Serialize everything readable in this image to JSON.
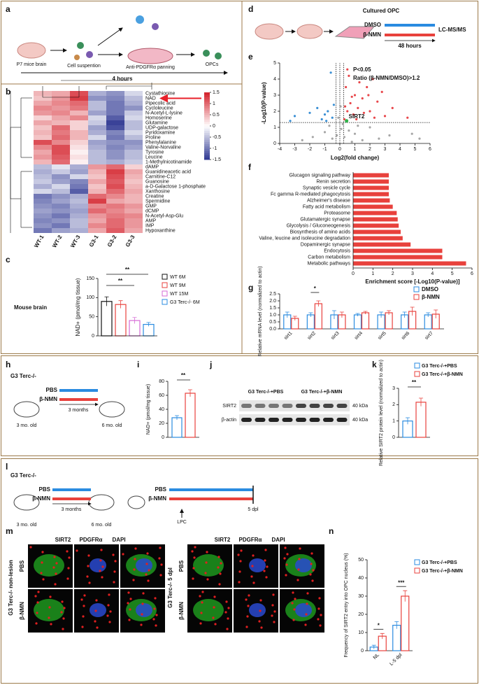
{
  "panel_labels": [
    "a",
    "b",
    "c",
    "d",
    "e",
    "f",
    "g",
    "h",
    "i",
    "j",
    "k",
    "l",
    "m",
    "n"
  ],
  "a": {
    "steps": [
      "P7 mice brain",
      "Cell suspention",
      "Anti-PDGFRα panning",
      "OPCs"
    ],
    "duration": "4 hours"
  },
  "b": {
    "type": "heatmap",
    "columns": [
      "WT-1",
      "WT-2",
      "WT-3",
      "G3-1",
      "G3-2",
      "G3-3"
    ],
    "rows": [
      "Cystathionine",
      "NAD",
      "Pipecolic acid",
      "Cycloleucine",
      "N-Acetyl-L-lysine",
      "Homoserine",
      "Glutamine",
      "UDP-galactose",
      "Pyridoxamine",
      "Proline",
      "Phenylalanine",
      "Valine-Norvaline",
      "Tyrosine",
      "Leucine",
      "1-Methylnicotinamide",
      "dAMP",
      "Guanidineacetic acid",
      "Carnitine-C12",
      "Guanosine",
      "a-D-Galactose 1-phosphate",
      "Xanthosine",
      "Creatine",
      "Spermidine",
      "GMP",
      "dCMP",
      "N-Acetyl-Asp-Glu",
      "AMP",
      "IMP",
      "Hypoxanthine"
    ],
    "values": [
      [
        0.5,
        0.6,
        1.2,
        -0.6,
        -0.8,
        -0.3
      ],
      [
        0.4,
        0.7,
        1.3,
        -0.8,
        -0.9,
        -0.5
      ],
      [
        0.6,
        0.8,
        1.0,
        -0.5,
        -1.0,
        -0.6
      ],
      [
        0.8,
        0.7,
        0.9,
        -0.5,
        -1.0,
        -0.8
      ],
      [
        0.7,
        0.8,
        0.5,
        -0.7,
        -1.0,
        -0.4
      ],
      [
        0.3,
        0.6,
        0.8,
        -0.3,
        -1.2,
        -0.3
      ],
      [
        0.6,
        0.5,
        0.3,
        -0.4,
        -1.4,
        -0.5
      ],
      [
        0.4,
        1.0,
        0.3,
        -0.7,
        -1.3,
        -0.5
      ],
      [
        0.5,
        0.9,
        0.5,
        -0.6,
        -0.9,
        -0.3
      ],
      [
        0.4,
        1.0,
        0.5,
        -0.3,
        -1.0,
        -0.5
      ],
      [
        1.2,
        0.8,
        0.3,
        -0.7,
        -0.8,
        -0.8
      ],
      [
        0.8,
        1.2,
        0.2,
        -0.6,
        -0.9,
        -0.7
      ],
      [
        0.6,
        1.2,
        0.1,
        -0.5,
        -0.8,
        -0.5
      ],
      [
        0.7,
        1.1,
        0.2,
        -0.5,
        -0.8,
        -0.5
      ],
      [
        0.5,
        1.0,
        0.1,
        -0.5,
        -0.6,
        -0.4
      ],
      [
        -0.5,
        -0.2,
        -0.6,
        0.7,
        1.0,
        0.3
      ],
      [
        -0.6,
        -0.4,
        -0.7,
        0.5,
        1.3,
        0.6
      ],
      [
        -0.5,
        -0.8,
        -0.3,
        0.4,
        1.2,
        0.5
      ],
      [
        -0.4,
        -0.7,
        -0.9,
        0.6,
        1.1,
        0.4
      ],
      [
        -0.6,
        -0.3,
        -1.0,
        0.4,
        1.2,
        0.5
      ],
      [
        -0.3,
        -0.5,
        -1.2,
        0.5,
        1.0,
        0.6
      ],
      [
        -1.0,
        -0.8,
        -0.6,
        1.0,
        0.8,
        0.5
      ],
      [
        -0.9,
        -0.7,
        -0.5,
        1.3,
        0.6,
        0.5
      ],
      [
        -0.8,
        -0.9,
        -0.6,
        0.8,
        0.9,
        0.7
      ],
      [
        -0.7,
        -0.8,
        -0.7,
        1.0,
        0.8,
        0.6
      ],
      [
        -0.8,
        -1.0,
        -0.6,
        0.7,
        0.9,
        0.8
      ],
      [
        -0.9,
        -0.8,
        -0.5,
        0.6,
        1.0,
        0.7
      ],
      [
        -0.8,
        -1.0,
        -0.5,
        0.8,
        1.0,
        0.7
      ],
      [
        -1.0,
        -0.7,
        -0.6,
        0.6,
        1.1,
        0.6
      ]
    ],
    "colorbar": {
      "lim": [
        -1.5,
        1.5
      ],
      "ticks": [
        1.5,
        1,
        0.5,
        0,
        -0.5,
        -1,
        -1.5
      ],
      "colors": [
        "#2c3591",
        "#ffffff",
        "#d3202a"
      ]
    },
    "highlight_color": "#e8202a"
  },
  "c": {
    "type": "bar",
    "title": "Mouse brain",
    "ylabel": "NAD+ (pmol/mg tissue)",
    "categories": [
      "WT 6M",
      "WT 9M",
      "WT 15M",
      "G3 Terc-/- 6M"
    ],
    "colors": [
      "#111111",
      "#e8413c",
      "#d66ad6",
      "#2a8be0"
    ],
    "values": [
      90,
      82,
      40,
      30
    ],
    "errors": [
      12,
      10,
      8,
      5
    ],
    "ylim": [
      0,
      150
    ],
    "yticks": [
      0,
      50,
      100,
      150
    ],
    "annotations": [
      "**",
      "**"
    ]
  },
  "d": {
    "title": "Cultured OPC",
    "treatments": [
      "DMSO",
      "β-NMN"
    ],
    "duration": "48 hours",
    "method": "LC-MS/MS"
  },
  "e": {
    "type": "scatter",
    "xlabel": "Log2(fold change)",
    "ylabel": "-Log10(P-value)",
    "xlim": [
      -4,
      6
    ],
    "xticks": [
      -4,
      -3,
      -2,
      -1,
      0,
      1,
      2,
      3,
      4,
      5,
      6
    ],
    "ylim": [
      0,
      5
    ],
    "yticks": [
      0,
      1,
      2,
      3,
      4,
      5
    ],
    "thresholds": [
      "P<0.05",
      "Ratio (β-NMN/DMSO)>1.2"
    ],
    "cutoffs": {
      "y": 1.3,
      "x": [
        -0.26,
        0,
        0.26
      ]
    },
    "up": {
      "x": [
        0.3,
        0.5,
        0.7,
        0.9,
        1.0,
        1.2,
        1.5,
        1.8,
        2.0,
        2.2,
        0.4,
        0.6,
        1.3,
        2.5,
        2.8,
        3.0,
        1.1,
        0.8,
        1.6,
        2.3,
        0.5,
        3.5,
        1.9,
        0.35,
        4.5
      ],
      "y": [
        1.5,
        2.0,
        2.5,
        1.8,
        3.0,
        2.2,
        2.8,
        3.5,
        2.0,
        4.0,
        3.5,
        4.2,
        3.8,
        2.6,
        3.2,
        1.7,
        1.5,
        2.9,
        1.9,
        1.6,
        4.6,
        2.2,
        3.0,
        2.3,
        1.6
      ]
    },
    "down": {
      "x": [
        -0.5,
        -0.8,
        -1.2,
        -1.5,
        -0.4,
        -3.3,
        -3.0,
        -2.0,
        -0.9,
        -0.6,
        -1.0
      ],
      "y": [
        1.6,
        2.0,
        1.5,
        2.2,
        2.4,
        1.4,
        1.7,
        1.9,
        1.4,
        4.4,
        1.8
      ]
    },
    "ns": {
      "x": [
        -0.2,
        0.1,
        0.3,
        0.6,
        -0.5,
        1.0,
        1.5,
        -1.0,
        2.0,
        -1.8,
        0.2,
        -0.1,
        0.05,
        2.6,
        -2.5,
        3.3,
        4.8,
        5.3,
        0.8,
        -0.7,
        1.2
      ],
      "y": [
        0.5,
        0.9,
        0.4,
        0.8,
        0.3,
        0.6,
        0.2,
        0.7,
        1.0,
        0.4,
        1.2,
        1.6,
        2.3,
        0.3,
        0.2,
        0.5,
        0.6,
        0.3,
        0.1,
        1.1,
        1.1
      ]
    },
    "highlight": {
      "label": "SIRT2",
      "x": 0.45,
      "y": 1.4
    },
    "colors": {
      "up": "#e8474b",
      "down": "#3a8fd4",
      "ns": "#a6a6a6",
      "highlight": "#2db34a"
    }
  },
  "f": {
    "type": "hbar",
    "categories": [
      "Glucagon signaling pathway",
      "Renin secretion",
      "Synaptic vesicle cycle",
      "Fc gamma R-mediated phagocytosis",
      "Alzheimer's disease",
      "Fatty acid metabolism",
      "Proteasome",
      "Glutamatergic synapse",
      "Glycolysis / Gluconeogenesis",
      "Biosynthesis of amino acids",
      "Valine, leucine and isoleucine degradation",
      "Dopaminergic synapse",
      "Endocytosis",
      "Carbon metabolism",
      "Metabolic pathways"
    ],
    "values": [
      1.8,
      1.8,
      1.8,
      1.8,
      1.85,
      2.0,
      2.2,
      2.25,
      2.3,
      2.4,
      2.5,
      2.9,
      4.5,
      4.5,
      5.7
    ],
    "xlim": [
      0,
      6
    ],
    "xticks": [
      0,
      1,
      2,
      3,
      4,
      5,
      6
    ],
    "xlabel": "Enrichment score [-Log10(P-value)]",
    "color": "#e8413c"
  },
  "g": {
    "type": "grouped_bar",
    "ylabel": "Relative mRNA level (normalized to actin)",
    "categories": [
      "sirt1",
      "sirt2",
      "sirt3",
      "sirt4",
      "sirt5",
      "sirt6",
      "sirt7"
    ],
    "series": [
      {
        "name": "DMSO",
        "color": "#2a8be0",
        "values": [
          1.0,
          1.0,
          1.0,
          1.0,
          1.0,
          1.0,
          1.0
        ],
        "errors": [
          0.2,
          0.15,
          0.3,
          0.1,
          0.2,
          0.2,
          0.15
        ]
      },
      {
        "name": "β-NMN",
        "color": "#e8413c",
        "values": [
          0.75,
          1.8,
          1.0,
          1.15,
          1.15,
          1.25,
          1.05
        ],
        "errors": [
          0.15,
          0.2,
          0.2,
          0.1,
          0.15,
          0.3,
          0.3
        ]
      }
    ],
    "ylim": [
      0,
      2.5
    ],
    "yticks": [
      {
        "value": 0,
        "label": "0.0"
      },
      0.5,
      {
        "value": 1,
        "label": "1.0"
      },
      1.5,
      {
        "value": 2,
        "label": "2.0"
      },
      2.5
    ],
    "annotations": [
      "*"
    ]
  },
  "h": {
    "strain": "G3 Terc-/-",
    "treatments": [
      "PBS",
      "β-NMN"
    ],
    "timeline": [
      "3 mo. old",
      "3 months",
      "6 mo. old"
    ]
  },
  "i": {
    "type": "bar",
    "ylabel": "NAD+ (pmol/mg tissue)",
    "values": [
      28,
      63
    ],
    "errors": [
      3,
      5
    ],
    "colors": [
      "#2a8be0",
      "#e8413c"
    ],
    "ylim": [
      0,
      80
    ],
    "yticks": [
      0,
      20,
      40,
      60,
      80
    ],
    "annotations": [
      "**"
    ]
  },
  "j": {
    "lanes": [
      "G3 Terc-/-+PBS",
      "G3 Terc-/-+β-NMN"
    ],
    "bands": [
      "SIRT2",
      "β-actin"
    ],
    "markers": [
      "40 kDa",
      "40 kDa"
    ]
  },
  "k": {
    "type": "bar",
    "ylabel": "Relative SIRT2 protein level (normalized to actin)",
    "legend": [
      "G3 Terc-/-+PBS",
      "G3 Terc-/-+β-NMN"
    ],
    "values": [
      1,
      2.15
    ],
    "errors": [
      0.2,
      0.25
    ],
    "colors": [
      "#2a8be0",
      "#e8413c"
    ],
    "ylim": [
      0,
      3
    ],
    "yticks": [
      0,
      1,
      2,
      3
    ],
    "annotations": [
      "**"
    ]
  },
  "l": {
    "strain": "G3 Terc-/-",
    "treatments": [
      "PBS",
      "β-NMN"
    ],
    "timeline": [
      "3 mo. old",
      "3 months",
      "6 mo. old",
      "LPC",
      "5 dpl"
    ]
  },
  "m": {
    "channels": [
      "SIRT2",
      "PDGFRα",
      "DAPI"
    ],
    "channel_colors": [
      "#e8202a",
      "#22c022",
      "#2a5be0"
    ],
    "conditions": [
      "G3 Terc-/- non-lesion",
      "G3 Terc-/- 5 dpl"
    ],
    "rows": [
      "PBS",
      "β-NMN"
    ]
  },
  "n": {
    "type": "grouped_bar",
    "ylabel": "Frequency of SIRT2 entry into OPC nucleus (%)",
    "categories": [
      "NL",
      "L-5 dpl"
    ],
    "series": [
      {
        "name": "G3 Terc-/-+PBS",
        "color": "#2a8be0",
        "values": [
          2,
          14
        ],
        "errors": [
          1,
          2
        ]
      },
      {
        "name": "G3 Terc-/-+β-NMN",
        "color": "#e8413c",
        "values": [
          8,
          30
        ],
        "errors": [
          1.5,
          3
        ]
      }
    ],
    "ylim": [
      0,
      50
    ],
    "yticks": [
      0,
      10,
      20,
      30,
      40,
      50
    ],
    "annotations": [
      "*",
      "***"
    ]
  }
}
